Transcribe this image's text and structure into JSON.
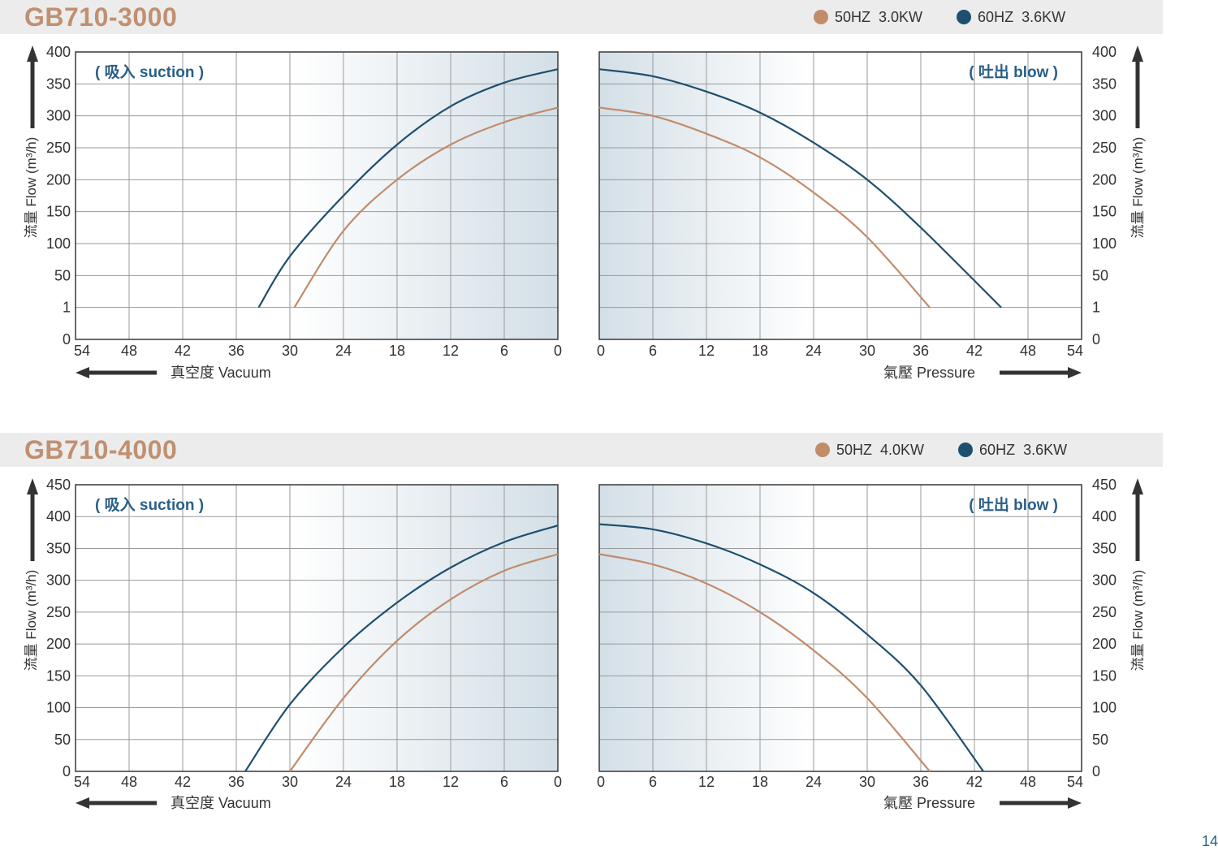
{
  "page_number": "14",
  "colors": {
    "hz50": "#c08c6a",
    "hz60": "#1f4f6e",
    "label": "#2a5f86"
  },
  "axis_text": {
    "y_label": "流量 Flow (m³/h)",
    "vacuum_label": "真空度  Vacuum",
    "pressure_label": "氣壓  Pressure",
    "suction_tag": "( 吸入 suction )",
    "blow_tag": "( 吐出 blow )"
  },
  "panels": [
    {
      "title": "GB710-3000",
      "legend": [
        {
          "label": "50HZ  3.0KW",
          "color": "#c08c6a"
        },
        {
          "label": "60HZ  3.6KW",
          "color": "#1f4f6e"
        }
      ]
    },
    {
      "title": "GB710-4000",
      "legend": [
        {
          "label": "50HZ  4.0KW",
          "color": "#c08c6a"
        },
        {
          "label": "60HZ  3.6KW",
          "color": "#1f4f6e"
        }
      ]
    }
  ],
  "chart_data": [
    {
      "type": "line",
      "title": "GB710-3000 ( 吸入 suction )",
      "xlabel": "真空度 Vacuum",
      "ylabel": "流量 Flow (m³/h)",
      "x_ticks": [
        "54",
        "48",
        "42",
        "36",
        "30",
        "24",
        "18",
        "12",
        "6",
        "0"
      ],
      "y_ticks": [
        "0",
        "1",
        "50",
        "100",
        "150",
        "200",
        "250",
        "300",
        "350",
        "400"
      ],
      "series": [
        {
          "name": "50HZ 3.0KW",
          "x": [
            29.5,
            24,
            18,
            12,
            6,
            0
          ],
          "y": [
            1,
            120,
            200,
            255,
            290,
            313
          ]
        },
        {
          "name": "60HZ 3.6KW",
          "x": [
            33.5,
            30,
            24,
            18,
            12,
            6,
            0
          ],
          "y": [
            1,
            80,
            175,
            255,
            315,
            352,
            373
          ]
        }
      ]
    },
    {
      "type": "line",
      "title": "GB710-3000 ( 吐出 blow )",
      "xlabel": "氣壓 Pressure",
      "ylabel": "流量 Flow (m³/h)",
      "x_ticks": [
        "0",
        "6",
        "12",
        "18",
        "24",
        "30",
        "36",
        "42",
        "48",
        "54"
      ],
      "y_ticks": [
        "0",
        "1",
        "50",
        "100",
        "150",
        "200",
        "250",
        "300",
        "350",
        "400"
      ],
      "series": [
        {
          "name": "50HZ 3.0KW",
          "x": [
            0,
            6,
            12,
            18,
            24,
            30,
            37
          ],
          "y": [
            313,
            300,
            272,
            235,
            180,
            110,
            1
          ]
        },
        {
          "name": "60HZ 3.6KW",
          "x": [
            0,
            6,
            12,
            18,
            24,
            30,
            36,
            45
          ],
          "y": [
            373,
            362,
            338,
            305,
            258,
            200,
            125,
            1
          ]
        }
      ]
    },
    {
      "type": "line",
      "title": "GB710-4000 ( 吸入 suction )",
      "xlabel": "真空度 Vacuum",
      "ylabel": "流量 Flow (m³/h)",
      "x_ticks": [
        "54",
        "48",
        "42",
        "36",
        "30",
        "24",
        "18",
        "12",
        "6",
        "0"
      ],
      "y_ticks": [
        "0",
        "50",
        "100",
        "150",
        "200",
        "250",
        "300",
        "350",
        "400",
        "450"
      ],
      "series": [
        {
          "name": "50HZ 4.0KW",
          "x": [
            30,
            24,
            18,
            12,
            6,
            0
          ],
          "y": [
            0,
            115,
            205,
            270,
            315,
            341
          ]
        },
        {
          "name": "60HZ 3.6KW",
          "x": [
            35,
            30,
            24,
            18,
            12,
            6,
            0
          ],
          "y": [
            0,
            105,
            195,
            265,
            320,
            360,
            386
          ]
        }
      ]
    },
    {
      "type": "line",
      "title": "GB710-4000 ( 吐出 blow )",
      "xlabel": "氣壓 Pressure",
      "ylabel": "流量 Flow (m³/h)",
      "x_ticks": [
        "0",
        "6",
        "12",
        "18",
        "24",
        "30",
        "36",
        "42",
        "48",
        "54"
      ],
      "y_ticks": [
        "0",
        "50",
        "100",
        "150",
        "200",
        "250",
        "300",
        "350",
        "400",
        "450"
      ],
      "series": [
        {
          "name": "50HZ 4.0KW",
          "x": [
            0,
            6,
            12,
            18,
            24,
            30,
            37
          ],
          "y": [
            341,
            325,
            295,
            250,
            190,
            115,
            0
          ]
        },
        {
          "name": "60HZ 3.6KW",
          "x": [
            0,
            6,
            12,
            18,
            24,
            30,
            36,
            43
          ],
          "y": [
            388,
            380,
            358,
            325,
            280,
            215,
            135,
            0
          ]
        }
      ]
    }
  ]
}
